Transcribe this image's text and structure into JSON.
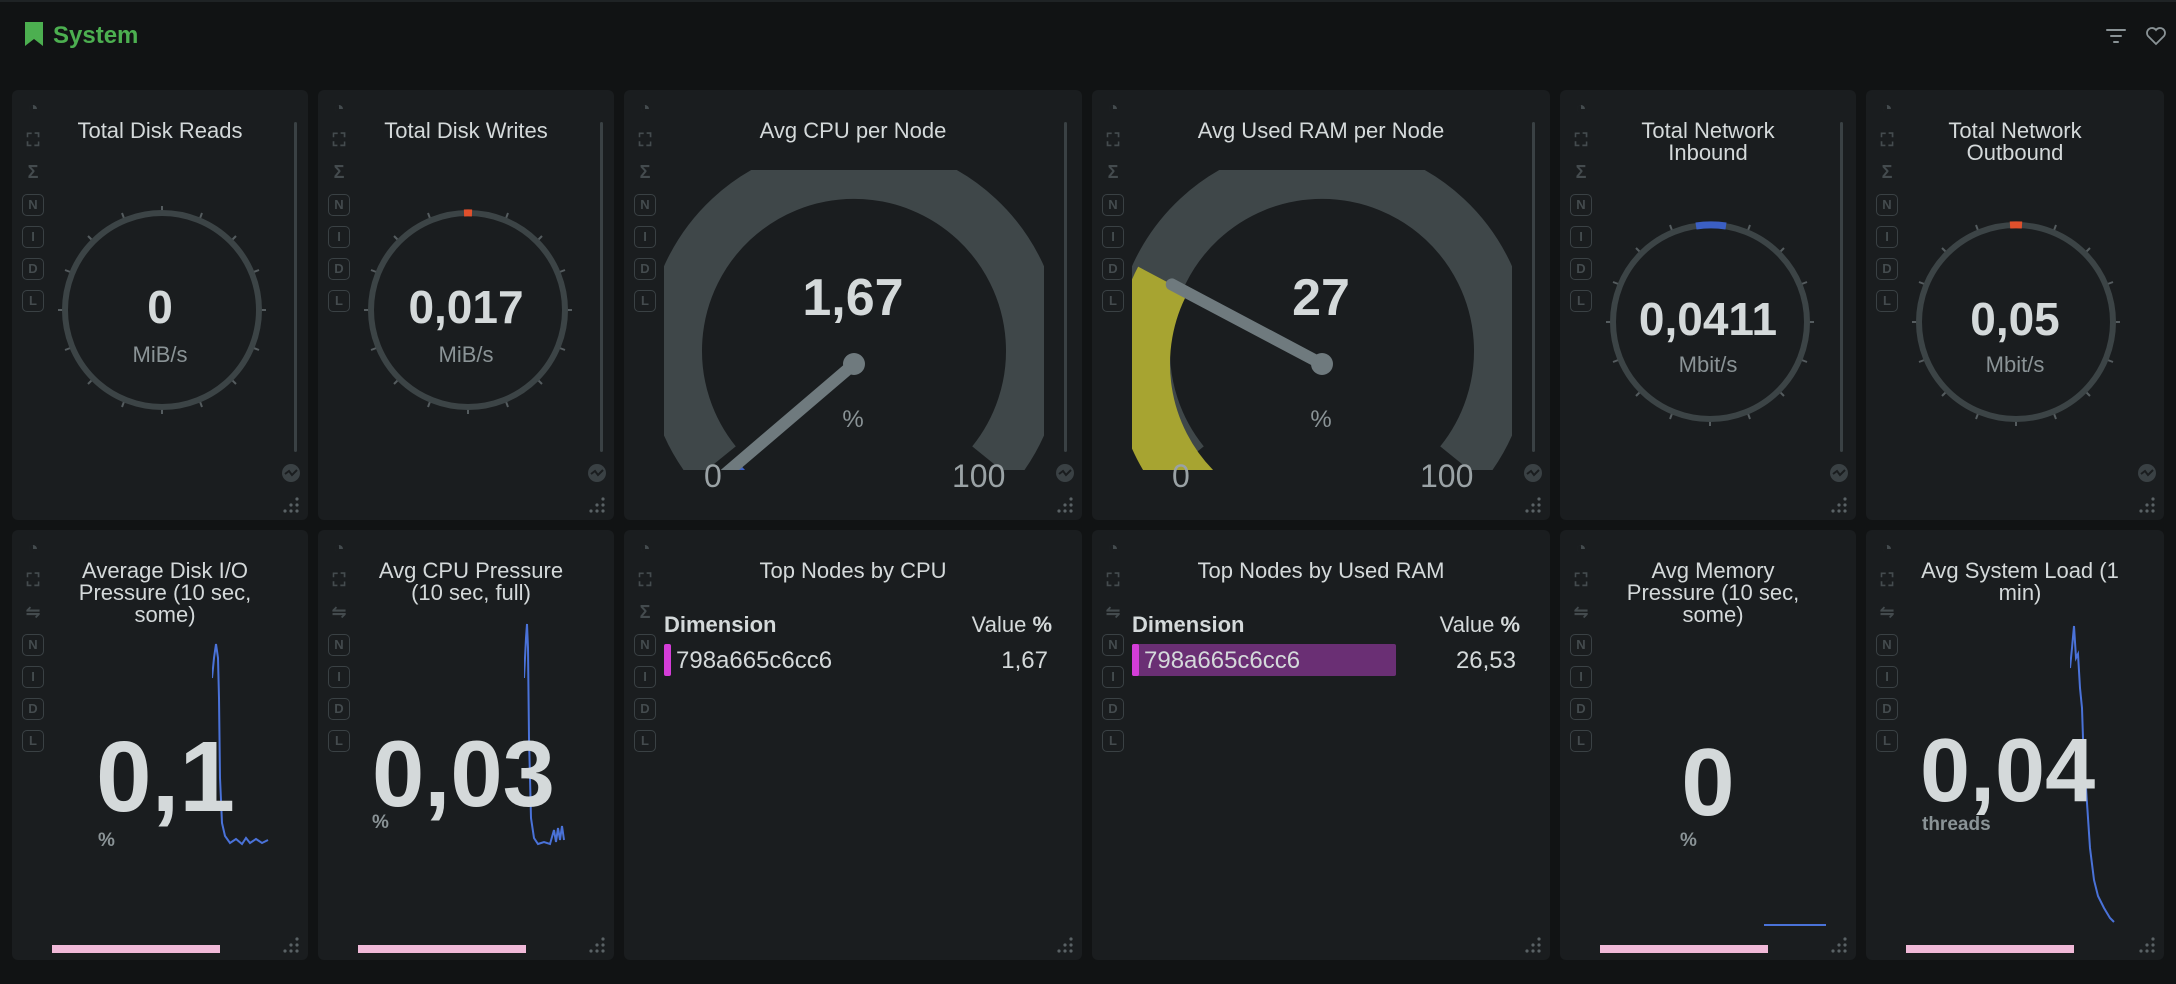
{
  "dashboard": {
    "title": "System",
    "title_color": "#4caf50",
    "icons": {
      "filter": "filter-icon",
      "favorite": "heart-icon"
    }
  },
  "panels": {
    "disk_reads": {
      "title": "Total Disk Reads",
      "value": "0",
      "unit": "MiB/s",
      "gauge_fraction": 0
    },
    "disk_writes": {
      "title": "Total Disk Writes",
      "value": "0,017",
      "unit": "MiB/s",
      "gauge_fraction": 0.0
    },
    "cpu": {
      "title": "Avg CPU per Node",
      "value": "1,67",
      "unit": "%",
      "min": "0",
      "max": "100",
      "gauge_percent": 1.67,
      "color": "#3b5fc4"
    },
    "ram": {
      "title": "Avg Used RAM per Node",
      "value": "27",
      "unit": "%",
      "min": "0",
      "max": "100",
      "gauge_percent": 27,
      "color": "#a7a431"
    },
    "net_in": {
      "title": "Total Network Inbound",
      "value": "0,0411",
      "unit": "Mbit/s",
      "color": "#3b5fc4"
    },
    "net_out": {
      "title": "Total Network Outbound",
      "value": "0,05",
      "unit": "Mbit/s",
      "color": "#e0502c"
    },
    "disk_io_pressure": {
      "title": "Average Disk I/O Pressure (10 sec, some)",
      "value": "0,1",
      "unit": "%"
    },
    "cpu_pressure": {
      "title": "Avg CPU Pressure (10 sec, full)",
      "value": "0,03",
      "unit": "%"
    },
    "top_cpu": {
      "title": "Top Nodes by CPU",
      "col_dimension": "Dimension",
      "col_value": "Value",
      "col_unit": "%",
      "rows": [
        {
          "name": "798a665c6cc6",
          "value": "1,67"
        }
      ]
    },
    "top_ram": {
      "title": "Top Nodes by Used RAM",
      "col_dimension": "Dimension",
      "col_value": "Value",
      "col_unit": "%",
      "rows": [
        {
          "name": "798a665c6cc6",
          "value": "26,53",
          "percent": 26.53
        }
      ]
    },
    "mem_pressure": {
      "title": "Avg Memory Pressure (10 sec, some)",
      "value": "0",
      "unit": "%"
    },
    "system_load": {
      "title": "Avg System Load (1 min)",
      "value": "0,04",
      "unit": "threads"
    }
  },
  "rail_icons": [
    "chart-type-icon",
    "expand-icon",
    "sum-icon",
    "n-icon",
    "i-icon",
    "d-icon",
    "l-icon"
  ],
  "rail_labels": {
    "n": "N",
    "i": "I",
    "d": "D",
    "l": "L",
    "sum": "Σ",
    "arrows": "⇋"
  }
}
